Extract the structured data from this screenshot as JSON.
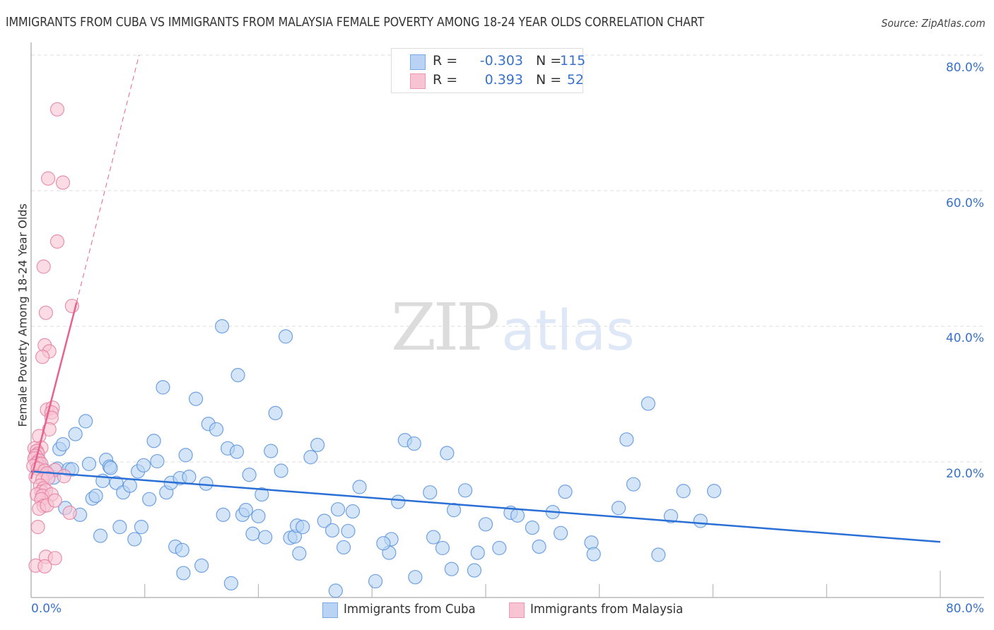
{
  "header": {
    "title": "IMMIGRANTS FROM CUBA VS IMMIGRANTS FROM MALAYSIA FEMALE POVERTY AMONG 18-24 YEAR OLDS CORRELATION CHART",
    "source": "Source: ZipAtlas.com"
  },
  "watermark": {
    "zip": "ZIP",
    "atlas": "atlas"
  },
  "axes": {
    "y_label": "Female Poverty Among 18-24 Year Olds",
    "y_ticks": [
      "80.0%",
      "60.0%",
      "40.0%",
      "20.0%"
    ],
    "x_ticks": [
      "0.0%",
      "80.0%"
    ]
  },
  "legend": {
    "rows": [
      {
        "r_label": "R =",
        "r_value": "-0.303",
        "n_label": "N =",
        "n_value": "115"
      },
      {
        "r_label": "R =",
        "r_value": "0.393",
        "n_label": "N =",
        "n_value": "52"
      }
    ],
    "bottom": [
      "Immigrants from Cuba",
      "Immigrants from Malaysia"
    ]
  },
  "colors": {
    "cuba_fill": "#b8d3f4",
    "cuba_stroke": "#5b93dd",
    "cuba_line": "#2a6fd6",
    "malaysia_fill": "#f8c4d4",
    "malaysia_stroke": "#e57fa1",
    "malaysia_line": "#e8628f",
    "tick_text": "#3a72c8"
  },
  "chart_data": {
    "type": "scatter",
    "title": "IMMIGRANTS FROM CUBA VS IMMIGRANTS FROM MALAYSIA FEMALE POVERTY AMONG 18-24 YEAR OLDS CORRELATION CHART",
    "xlabel": "",
    "ylabel": "Female Poverty Among 18-24 Year Olds",
    "xlim": [
      0,
      80
    ],
    "ylim": [
      0,
      80
    ],
    "x_ticks": [
      0,
      80
    ],
    "y_ticks": [
      20,
      40,
      60,
      80
    ],
    "grid": "horizontal dashed",
    "legend_position": "top-center and bottom",
    "series": [
      {
        "name": "Immigrants from Cuba",
        "r": -0.303,
        "n": 115,
        "trend": {
          "x": [
            0,
            80
          ],
          "y": [
            18.6,
            8.2
          ]
        },
        "points": [
          [
            0.6,
            20.5
          ],
          [
            0.9,
            19.2
          ],
          [
            1.3,
            18.4
          ],
          [
            2.0,
            17.7
          ],
          [
            2.3,
            19.0
          ],
          [
            2.5,
            21.9
          ],
          [
            2.8,
            22.6
          ],
          [
            3.0,
            13.2
          ],
          [
            3.3,
            18.9
          ],
          [
            3.6,
            18.9
          ],
          [
            3.9,
            24.1
          ],
          [
            4.3,
            12.2
          ],
          [
            4.8,
            26.0
          ],
          [
            5.1,
            19.7
          ],
          [
            5.4,
            14.6
          ],
          [
            5.7,
            15.0
          ],
          [
            6.1,
            9.1
          ],
          [
            6.3,
            17.2
          ],
          [
            6.6,
            20.3
          ],
          [
            6.9,
            19.3
          ],
          [
            7.0,
            19.1
          ],
          [
            7.5,
            16.9
          ],
          [
            7.8,
            10.4
          ],
          [
            8.1,
            15.5
          ],
          [
            8.7,
            16.5
          ],
          [
            9.1,
            8.6
          ],
          [
            9.4,
            18.6
          ],
          [
            9.7,
            10.4
          ],
          [
            9.9,
            19.5
          ],
          [
            10.4,
            14.5
          ],
          [
            10.8,
            23.1
          ],
          [
            11.1,
            20.1
          ],
          [
            11.6,
            31.0
          ],
          [
            11.9,
            15.5
          ],
          [
            12.3,
            16.9
          ],
          [
            12.7,
            7.5
          ],
          [
            13.1,
            17.6
          ],
          [
            13.6,
            21.0
          ],
          [
            13.9,
            17.8
          ],
          [
            13.4,
            3.6
          ],
          [
            14.5,
            29.3
          ],
          [
            15.0,
            4.7
          ],
          [
            15.4,
            16.8
          ],
          [
            15.6,
            25.6
          ],
          [
            16.3,
            24.8
          ],
          [
            16.8,
            40.0
          ],
          [
            16.9,
            12.2
          ],
          [
            17.3,
            22.0
          ],
          [
            17.6,
            2.1
          ],
          [
            18.1,
            21.5
          ],
          [
            18.2,
            32.8
          ],
          [
            18.6,
            12.2
          ],
          [
            18.9,
            12.9
          ],
          [
            19.2,
            18.1
          ],
          [
            19.5,
            9.4
          ],
          [
            20.0,
            12.0
          ],
          [
            20.3,
            15.2
          ],
          [
            20.6,
            8.9
          ],
          [
            21.1,
            21.6
          ],
          [
            21.5,
            27.2
          ],
          [
            22.0,
            18.7
          ],
          [
            22.4,
            38.5
          ],
          [
            22.8,
            8.8
          ],
          [
            23.2,
            9.0
          ],
          [
            23.4,
            10.6
          ],
          [
            23.6,
            6.5
          ],
          [
            23.9,
            10.4
          ],
          [
            24.6,
            20.7
          ],
          [
            25.2,
            22.5
          ],
          [
            25.8,
            11.3
          ],
          [
            26.5,
            9.9
          ],
          [
            27.0,
            13.0
          ],
          [
            27.5,
            7.4
          ],
          [
            27.9,
            9.8
          ],
          [
            28.3,
            12.7
          ],
          [
            28.9,
            16.3
          ],
          [
            30.3,
            2.4
          ],
          [
            31.5,
            6.6
          ],
          [
            31.7,
            8.6
          ],
          [
            32.3,
            14.1
          ],
          [
            32.9,
            23.2
          ],
          [
            33.7,
            22.7
          ],
          [
            35.1,
            15.5
          ],
          [
            35.4,
            8.9
          ],
          [
            36.2,
            7.3
          ],
          [
            36.6,
            21.3
          ],
          [
            37.2,
            12.9
          ],
          [
            37.0,
            4.2
          ],
          [
            39.0,
            4.0
          ],
          [
            38.2,
            15.8
          ],
          [
            40.0,
            10.8
          ],
          [
            41.2,
            7.3
          ],
          [
            42.2,
            12.5
          ],
          [
            42.8,
            12.1
          ],
          [
            44.1,
            10.3
          ],
          [
            44.7,
            7.5
          ],
          [
            45.9,
            12.6
          ],
          [
            46.6,
            9.5
          ],
          [
            47.0,
            15.6
          ],
          [
            49.3,
            8.1
          ],
          [
            49.5,
            6.4
          ],
          [
            51.7,
            13.2
          ],
          [
            52.4,
            23.3
          ],
          [
            53.0,
            16.7
          ],
          [
            54.3,
            28.6
          ],
          [
            55.2,
            6.3
          ],
          [
            56.3,
            12.0
          ],
          [
            57.4,
            15.7
          ],
          [
            58.9,
            11.3
          ],
          [
            60.1,
            15.7
          ],
          [
            26.8,
            1.0
          ],
          [
            33.8,
            3.0
          ],
          [
            39.3,
            6.6
          ],
          [
            31.0,
            8.0
          ],
          [
            13.3,
            7.0
          ]
        ]
      },
      {
        "name": "Immigrants from Malaysia",
        "r": 0.393,
        "n": 52,
        "trend": {
          "x": [
            0,
            4.0
          ],
          "y": [
            17.5,
            43.5
          ],
          "dashed_extension": {
            "x": [
              4.0,
              9.5
            ],
            "y": [
              43.5,
              80
            ]
          }
        },
        "points": [
          [
            2.3,
            72.0
          ],
          [
            1.5,
            61.8
          ],
          [
            2.8,
            61.2
          ],
          [
            2.3,
            52.5
          ],
          [
            1.1,
            48.8
          ],
          [
            1.3,
            42.0
          ],
          [
            3.6,
            43.0
          ],
          [
            1.2,
            37.2
          ],
          [
            1.6,
            36.3
          ],
          [
            1.0,
            35.5
          ],
          [
            1.4,
            27.7
          ],
          [
            1.9,
            28.0
          ],
          [
            1.8,
            27.3
          ],
          [
            1.8,
            26.5
          ],
          [
            1.6,
            24.8
          ],
          [
            0.7,
            23.8
          ],
          [
            0.9,
            22.1
          ],
          [
            0.3,
            22.0
          ],
          [
            0.5,
            21.6
          ],
          [
            0.6,
            21.2
          ],
          [
            0.4,
            20.9
          ],
          [
            0.3,
            20.5
          ],
          [
            0.7,
            20.2
          ],
          [
            0.5,
            19.8
          ],
          [
            0.9,
            19.7
          ],
          [
            0.2,
            19.4
          ],
          [
            0.6,
            19.0
          ],
          [
            1.2,
            18.7
          ],
          [
            2.1,
            18.8
          ],
          [
            1.4,
            18.3
          ],
          [
            0.4,
            17.8
          ],
          [
            1.0,
            17.4
          ],
          [
            1.5,
            17.6
          ],
          [
            2.9,
            17.9
          ],
          [
            0.8,
            16.5
          ],
          [
            1.1,
            16.1
          ],
          [
            0.9,
            15.6
          ],
          [
            1.3,
            15.8
          ],
          [
            0.5,
            15.2
          ],
          [
            1.0,
            15.0
          ],
          [
            1.8,
            15.2
          ],
          [
            0.9,
            14.5
          ],
          [
            1.1,
            13.5
          ],
          [
            0.7,
            13.1
          ],
          [
            1.4,
            13.6
          ],
          [
            2.1,
            14.3
          ],
          [
            3.4,
            12.5
          ],
          [
            0.6,
            10.4
          ],
          [
            1.3,
            6.0
          ],
          [
            2.1,
            5.8
          ],
          [
            0.4,
            4.7
          ],
          [
            1.2,
            4.6
          ]
        ]
      }
    ]
  }
}
